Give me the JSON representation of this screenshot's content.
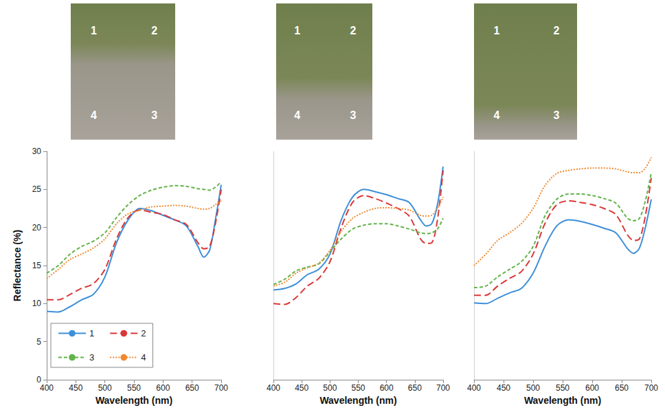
{
  "chart_data": [
    {
      "type": "line",
      "annotations": [
        "1",
        "2",
        "3",
        "4"
      ],
      "x_label": "Wavelength (nm)",
      "y_label": "Reflectance (%)",
      "x": [
        400,
        420,
        440,
        460,
        480,
        500,
        520,
        540,
        560,
        580,
        600,
        620,
        640,
        660,
        670,
        680,
        690,
        700
      ],
      "xlim": [
        400,
        700
      ],
      "xticks": [
        400,
        450,
        500,
        550,
        600,
        650,
        700
      ],
      "ylim": [
        0,
        30
      ],
      "yticks": [
        0,
        5,
        10,
        15,
        20,
        25,
        30
      ],
      "grid": false,
      "legend": "lower left",
      "series": [
        {
          "name": "1",
          "color": "#3d8fd9",
          "line_style": "solid",
          "values": [
            9,
            8.9,
            9.6,
            10.5,
            11.2,
            13.5,
            18,
            21,
            22.5,
            22.2,
            21.6,
            21,
            20.2,
            17.5,
            16.1,
            17,
            21,
            25.6
          ]
        },
        {
          "name": "2",
          "color": "#d93636",
          "line_style": "longdash",
          "values": [
            10.5,
            10.5,
            11.2,
            12,
            12.6,
            14.5,
            18.5,
            21.3,
            22.3,
            22,
            21.7,
            21,
            20.4,
            18,
            17.2,
            17.5,
            20.5,
            25
          ]
        },
        {
          "name": "3",
          "color": "#63b34a",
          "line_style": "dashed",
          "values": [
            14,
            15,
            16.5,
            17.5,
            18.2,
            19.3,
            21.3,
            23,
            24.2,
            24.9,
            25.3,
            25.5,
            25.4,
            25.1,
            25,
            24.9,
            25.3,
            26
          ]
        },
        {
          "name": "4",
          "color": "#f0892e",
          "line_style": "dotted",
          "values": [
            13.3,
            14.5,
            15.8,
            16.5,
            17.3,
            18.5,
            20.5,
            21.8,
            22.3,
            22.7,
            22.8,
            22.9,
            22.8,
            22.5,
            22.4,
            22.5,
            23,
            23.5
          ]
        }
      ]
    },
    {
      "type": "line",
      "annotations": [
        "1",
        "2",
        "3",
        "4"
      ],
      "x_label": "Wavelength (nm)",
      "x": [
        400,
        420,
        440,
        460,
        480,
        500,
        520,
        540,
        560,
        580,
        600,
        620,
        640,
        660,
        670,
        680,
        690,
        700
      ],
      "xlim": [
        400,
        700
      ],
      "xticks": [
        400,
        450,
        500,
        550,
        600,
        650,
        700
      ],
      "ylim": [
        0,
        30
      ],
      "yticks": [
        0,
        5,
        10,
        15,
        20,
        25,
        30
      ],
      "grid": false,
      "tick_labels": "x",
      "series": [
        {
          "name": "1",
          "color": "#3d8fd9",
          "line_style": "solid",
          "values": [
            11.8,
            12,
            12.6,
            13.8,
            14.5,
            16.5,
            21,
            24,
            25,
            24.7,
            24.3,
            23.8,
            23.3,
            21,
            20.2,
            20.5,
            23,
            28
          ]
        },
        {
          "name": "2",
          "color": "#d93636",
          "line_style": "longdash",
          "values": [
            10,
            9.9,
            10.8,
            12.3,
            13.3,
            15.5,
            20,
            23.3,
            24.2,
            23.8,
            23.2,
            22.5,
            21.5,
            18.5,
            17.9,
            18,
            21,
            27.5
          ]
        },
        {
          "name": "3",
          "color": "#63b34a",
          "line_style": "dashed",
          "values": [
            12.5,
            13.2,
            14.3,
            14.8,
            15.2,
            16.8,
            18.5,
            19.8,
            20.3,
            20.5,
            20.5,
            20.2,
            19.8,
            19.3,
            19.2,
            19.3,
            19.8,
            21.2
          ]
        },
        {
          "name": "4",
          "color": "#f0892e",
          "line_style": "dotted",
          "values": [
            12.3,
            12.8,
            14,
            14.7,
            15.3,
            17,
            19.5,
            21.2,
            22,
            22.5,
            22.6,
            22.5,
            22.3,
            21.6,
            21.5,
            21.6,
            22.5,
            24
          ]
        }
      ]
    },
    {
      "type": "line",
      "annotations": [
        "1",
        "2",
        "3",
        "4"
      ],
      "x_label": "Wavelength (nm)",
      "x": [
        400,
        420,
        440,
        460,
        480,
        500,
        520,
        540,
        560,
        580,
        600,
        620,
        640,
        660,
        670,
        680,
        690,
        700
      ],
      "xlim": [
        400,
        700
      ],
      "xticks": [
        400,
        450,
        500,
        550,
        600,
        650,
        700
      ],
      "ylim": [
        0,
        30
      ],
      "yticks": [
        0,
        5,
        10,
        15,
        20,
        25,
        30
      ],
      "grid": false,
      "tick_labels": "x",
      "series": [
        {
          "name": "1",
          "color": "#3d8fd9",
          "line_style": "solid",
          "values": [
            10.1,
            10,
            10.7,
            11.4,
            12,
            14,
            17.5,
            20.2,
            21,
            20.8,
            20.4,
            19.9,
            19.3,
            17.2,
            16.6,
            17.3,
            20,
            23.7
          ]
        },
        {
          "name": "2",
          "color": "#d93636",
          "line_style": "longdash",
          "values": [
            11.1,
            11.1,
            12.3,
            13.3,
            14.2,
            16.5,
            20.5,
            23,
            23.5,
            23.3,
            23,
            22.5,
            21.7,
            19,
            18.3,
            18.5,
            21.5,
            26.5
          ]
        },
        {
          "name": "3",
          "color": "#63b34a",
          "line_style": "dashed",
          "values": [
            12.1,
            12.3,
            13.5,
            14.5,
            15.5,
            17.5,
            21.5,
            23.7,
            24.4,
            24.4,
            24.2,
            23.8,
            23.2,
            21.2,
            20.9,
            21.2,
            23.5,
            27.2
          ]
        },
        {
          "name": "4",
          "color": "#f0892e",
          "line_style": "dotted",
          "values": [
            15,
            16.5,
            18.3,
            19.3,
            20.5,
            22.5,
            25.5,
            27.1,
            27.5,
            27.7,
            27.8,
            27.8,
            27.7,
            27.3,
            27.2,
            27.2,
            27.8,
            29.2
          ]
        }
      ]
    }
  ]
}
